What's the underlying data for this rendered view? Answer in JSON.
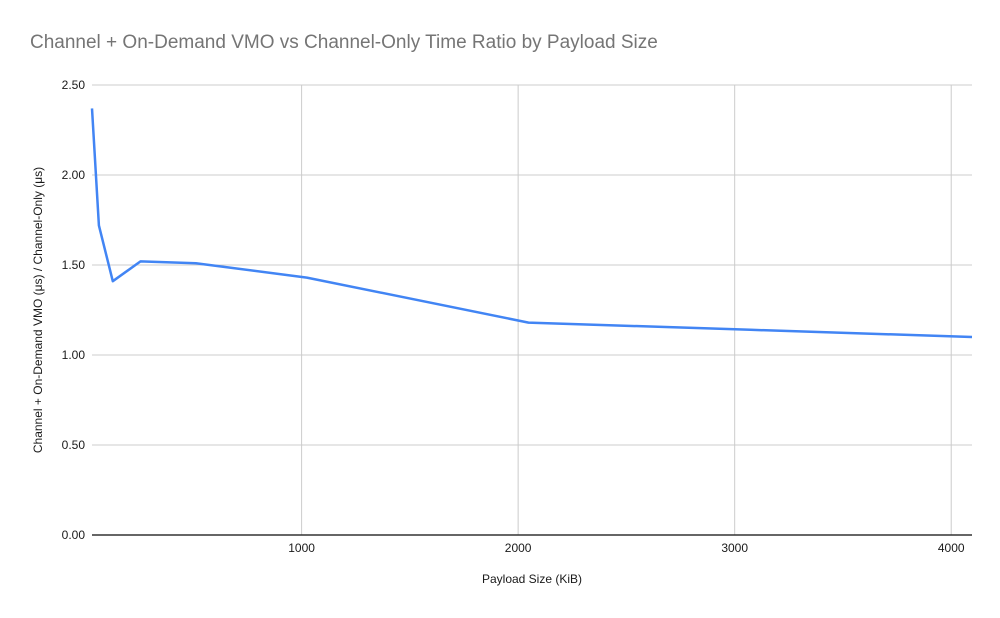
{
  "chart_data": {
    "type": "line",
    "title": "Channel + On-Demand VMO vs Channel-Only Time Ratio by Payload Size",
    "xlabel": "Payload Size (KiB)",
    "ylabel": "Channel + On-Demand VMO (μs) / Channel-Only (μs)",
    "series": [
      {
        "x": [
          32,
          64,
          128,
          256,
          512,
          1024,
          2048,
          3072,
          4096
        ],
        "values": [
          2.37,
          1.72,
          1.41,
          1.52,
          1.51,
          1.43,
          1.18,
          1.14,
          1.1
        ]
      }
    ],
    "xlim": [
      32,
      4096
    ],
    "ylim": [
      0,
      2.5
    ],
    "xticks": [
      1000,
      2000,
      3000,
      4000
    ],
    "xtick_labels": [
      "1000",
      "2000",
      "3000",
      "4000"
    ],
    "yticks": [
      0,
      0.5,
      1,
      1.5,
      2,
      2.5
    ],
    "ytick_labels": [
      "0.00",
      "0.50",
      "1.00",
      "1.50",
      "2.00",
      "2.50"
    ],
    "grid": true,
    "legend": "none",
    "colors": {
      "line": "#4285f4",
      "gridline": "#cccccc",
      "axis_line": "#333333",
      "title": "#757575",
      "tick_label": "#1a1a1a",
      "background": "#ffffff"
    }
  }
}
